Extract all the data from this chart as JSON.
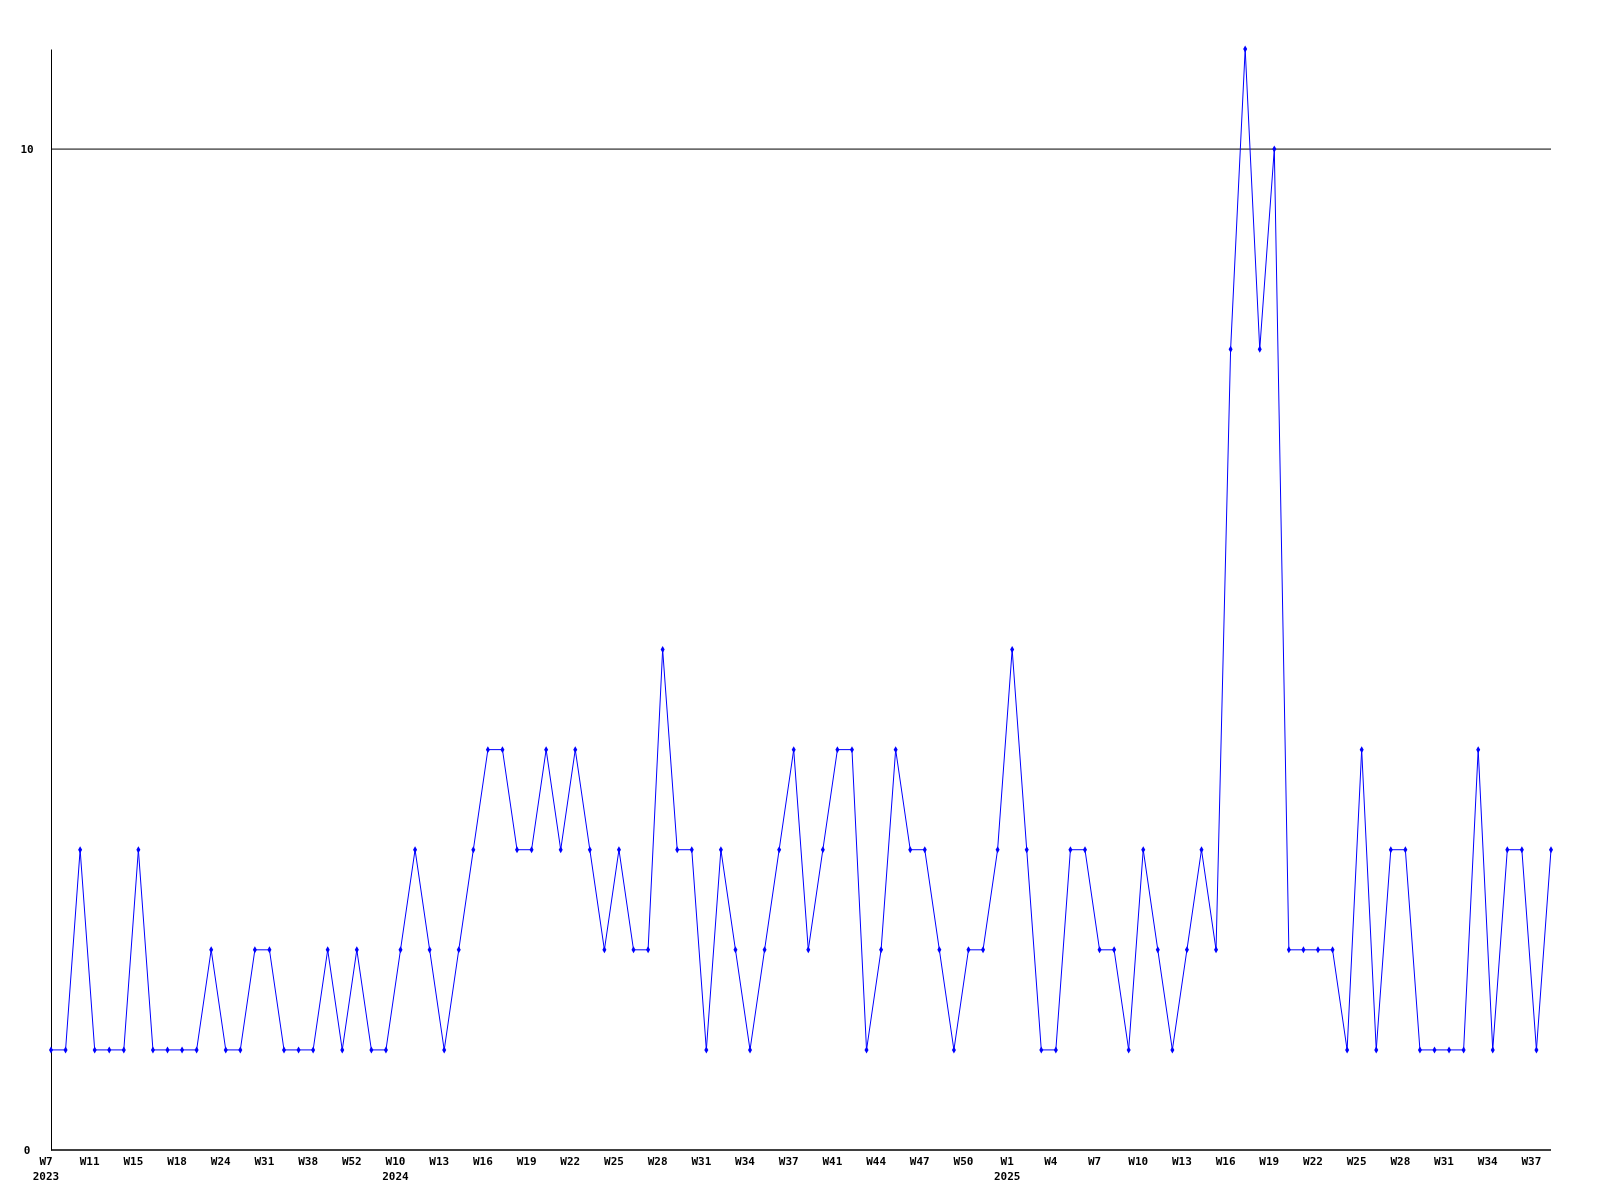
{
  "chart_data": {
    "type": "line",
    "categories": [
      "W7\n2023",
      null,
      null,
      "W11",
      null,
      null,
      "W15",
      null,
      null,
      "W18",
      null,
      null,
      "W24",
      null,
      null,
      "W31",
      null,
      null,
      "W38",
      null,
      null,
      "W52",
      null,
      null,
      "W10\n2024",
      null,
      null,
      "W13",
      null,
      null,
      "W16",
      null,
      null,
      "W19",
      null,
      null,
      "W22",
      null,
      null,
      "W25",
      null,
      null,
      "W28",
      null,
      null,
      "W31",
      null,
      null,
      "W34",
      null,
      null,
      "W37",
      null,
      null,
      "W41",
      null,
      null,
      "W44",
      null,
      null,
      "W47",
      null,
      null,
      "W50",
      null,
      null,
      "W1\n2025",
      null,
      null,
      "W4",
      null,
      null,
      "W7",
      null,
      null,
      "W10",
      null,
      null,
      "W13",
      null,
      null,
      "W16",
      null,
      null,
      "W19",
      null,
      null,
      "W22",
      null,
      null,
      "W25",
      null,
      null,
      "W28",
      null,
      null,
      "W31",
      null,
      null,
      "W34",
      null,
      null,
      "W37",
      null
    ],
    "series": [
      {
        "color": "#0000ff",
        "values": [
          1,
          1,
          3,
          1,
          1,
          1,
          3,
          1,
          1,
          1,
          1,
          2,
          1,
          1,
          2,
          2,
          1,
          1,
          1,
          2,
          1,
          2,
          1,
          1,
          2,
          3,
          2,
          1,
          2,
          3,
          4,
          4,
          3,
          3,
          4,
          3,
          4,
          3,
          2,
          3,
          2,
          2,
          5,
          3,
          3,
          1,
          3,
          2,
          1,
          2,
          3,
          4,
          2,
          3,
          4,
          4,
          1,
          2,
          4,
          3,
          3,
          2,
          1,
          2,
          2,
          3,
          5,
          3,
          1,
          1,
          3,
          3,
          2,
          2,
          1,
          3,
          2,
          1,
          2,
          3,
          2,
          8,
          11,
          8,
          10,
          2,
          2,
          2,
          2,
          1,
          4,
          1,
          3,
          3,
          1,
          1,
          1,
          1,
          4,
          1,
          3,
          3,
          1,
          3
        ]
      }
    ],
    "ylim": [
      0,
      11
    ],
    "yticks": [
      0,
      10
    ],
    "grid": "y",
    "marker": "diamond",
    "line_style": "solid"
  }
}
